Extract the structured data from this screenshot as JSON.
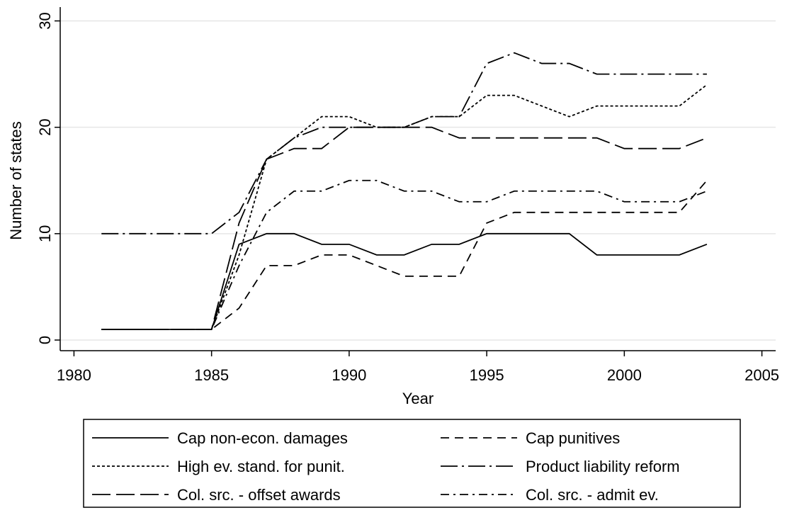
{
  "chart_data": {
    "type": "line",
    "x_label": "Year",
    "y_label": "Number of states",
    "x": [
      1981,
      1982,
      1983,
      1984,
      1985,
      1986,
      1987,
      1988,
      1989,
      1990,
      1991,
      1992,
      1993,
      1994,
      1995,
      1996,
      1997,
      1998,
      1999,
      2000,
      2001,
      2002,
      2003
    ],
    "xlim": [
      1979.5,
      2005.5
    ],
    "xticks": [
      1980,
      1985,
      1990,
      1995,
      2000,
      2005
    ],
    "ylim": [
      -1,
      31.3
    ],
    "yticks": [
      0,
      10,
      20,
      30
    ],
    "grid": true,
    "series": [
      {
        "name": "Cap non-econ. damages",
        "color": "#000000",
        "dash": "none",
        "values": [
          1,
          1,
          1,
          1,
          1,
          9,
          10,
          10,
          9,
          9,
          8,
          8,
          9,
          9,
          10,
          10,
          10,
          10,
          8,
          8,
          8,
          8,
          9
        ]
      },
      {
        "name": "Cap punitives",
        "color": "#000000",
        "dash": "12,8",
        "values": [
          1,
          1,
          1,
          1,
          1,
          3,
          7,
          7,
          8,
          8,
          7,
          6,
          6,
          6,
          11,
          12,
          12,
          12,
          12,
          12,
          12,
          12,
          15
        ]
      },
      {
        "name": "High ev. stand. for punit.",
        "color": "#000000",
        "dash": "4,3",
        "values": [
          1,
          1,
          1,
          1,
          1,
          8,
          17,
          19,
          21,
          21,
          20,
          20,
          21,
          21,
          23,
          23,
          22,
          21,
          22,
          22,
          22,
          22,
          24
        ]
      },
      {
        "name": "Product liability reform",
        "color": "#000000",
        "dash": "24,6,3,6",
        "values": [
          10,
          10,
          10,
          10,
          10,
          12,
          17,
          19,
          20,
          20,
          20,
          20,
          21,
          21,
          26,
          27,
          26,
          26,
          25,
          25,
          25,
          25,
          25
        ]
      },
      {
        "name": "Col. src. - offset awards",
        "color": "#000000",
        "dash": "26,8",
        "values": [
          1,
          1,
          1,
          1,
          1,
          11,
          17,
          18,
          18,
          20,
          20,
          20,
          20,
          19,
          19,
          19,
          19,
          19,
          19,
          18,
          18,
          18,
          19
        ]
      },
      {
        "name": "Col. src. - admit ev.",
        "color": "#000000",
        "dash": "12,6,3,6",
        "values": [
          1,
          1,
          1,
          1,
          1,
          7,
          12,
          14,
          14,
          15,
          15,
          14,
          14,
          13,
          13,
          14,
          14,
          14,
          14,
          13,
          13,
          13,
          14
        ]
      }
    ]
  }
}
